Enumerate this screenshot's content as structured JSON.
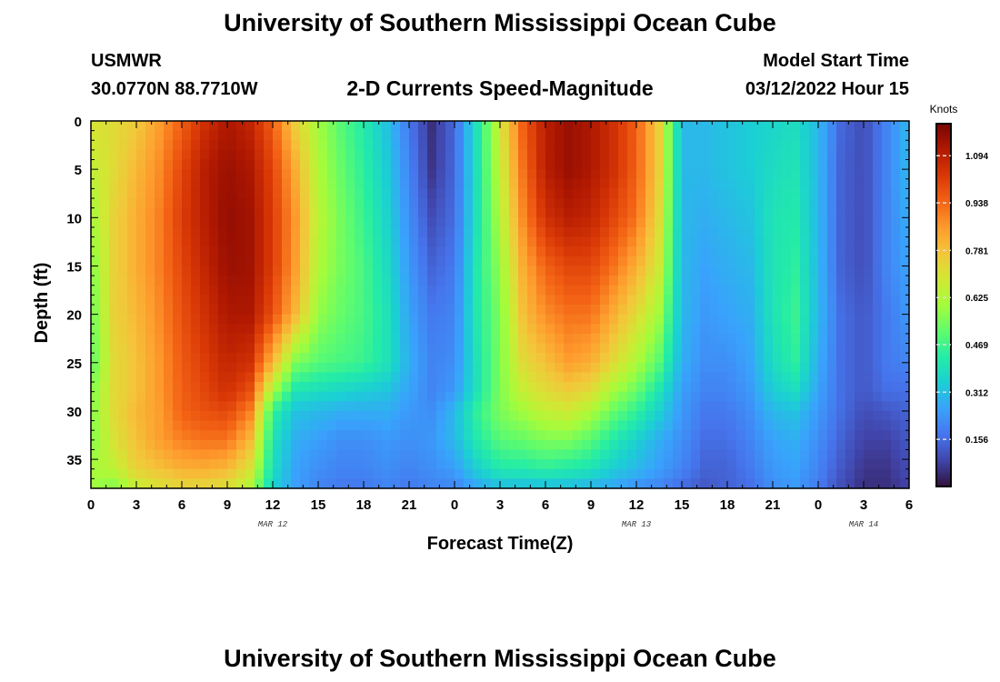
{
  "page": {
    "title": "University of Southern Mississippi Ocean Cube",
    "title_bottom": "University of Southern Mississippi Ocean Cube",
    "station": "USMWR",
    "coordinates": "30.0770N  88.7710W",
    "subtitle": "2-D Currents Speed-Magnitude",
    "model_start_label": "Model Start Time",
    "model_start_value": "03/12/2022 Hour 15"
  },
  "colors": {
    "colormap": [
      "#30123b",
      "#4145ab",
      "#4675ed",
      "#39a2fc",
      "#1bcfd4",
      "#24eca6",
      "#61fc6c",
      "#a4fc3b",
      "#d1e834",
      "#f3c63a",
      "#fe9b2d",
      "#f36315",
      "#d93806",
      "#b11901",
      "#7a0403"
    ]
  },
  "chart_data": {
    "type": "heatmap",
    "xlabel": "Forecast Time(Z)",
    "ylabel": "Depth (ft)",
    "x_ticks": [
      "0",
      "3",
      "6",
      "9",
      "12",
      "15",
      "18",
      "21",
      "0",
      "3",
      "6",
      "9",
      "12",
      "15",
      "18",
      "21",
      "0",
      "3",
      "6"
    ],
    "x_range_hours": [
      0,
      54
    ],
    "date_labels": [
      {
        "label": "MAR 12",
        "hour": 12
      },
      {
        "label": "MAR 13",
        "hour": 36
      },
      {
        "label": "MAR 14",
        "hour": 51
      }
    ],
    "y_ticks": [
      0,
      5,
      10,
      15,
      20,
      25,
      30,
      35
    ],
    "y_range": [
      0,
      38
    ],
    "y_inverted": true,
    "colorbar": {
      "title": "Knots",
      "ticks": [
        "1.094",
        "0.938",
        "0.781",
        "0.625",
        "0.469",
        "0.312",
        "0.156"
      ],
      "tick_values": [
        1.094,
        0.938,
        0.781,
        0.625,
        0.469,
        0.312,
        0.156
      ],
      "range": [
        0,
        1.2
      ]
    },
    "depths_ft": [
      0,
      5,
      10,
      15,
      20,
      25,
      28,
      30,
      33,
      36,
      38
    ],
    "hours": [
      0,
      1.5,
      3,
      4.5,
      6,
      7.5,
      9,
      10.5,
      12,
      13.5,
      15,
      16.5,
      18,
      19.5,
      21,
      22.5,
      24,
      25.5,
      27,
      28.5,
      30,
      31.5,
      33,
      34.5,
      36,
      37.5,
      39,
      40.5,
      42,
      43.5,
      45,
      46.5,
      48,
      49.5,
      51,
      52.5,
      54
    ],
    "speed_knots": [
      [
        0.7,
        0.65,
        0.6,
        0.55,
        0.52,
        0.5,
        0.55,
        0.55,
        0.55,
        0.6,
        0.6
      ],
      [
        0.72,
        0.72,
        0.74,
        0.74,
        0.74,
        0.72,
        0.72,
        0.72,
        0.7,
        0.65,
        0.55
      ],
      [
        0.76,
        0.8,
        0.82,
        0.82,
        0.8,
        0.78,
        0.78,
        0.8,
        0.78,
        0.75,
        0.65
      ],
      [
        0.85,
        0.88,
        0.9,
        0.9,
        0.88,
        0.86,
        0.86,
        0.85,
        0.85,
        0.78,
        0.7
      ],
      [
        0.95,
        1.0,
        1.02,
        1.0,
        0.98,
        0.96,
        0.95,
        0.95,
        0.9,
        0.82,
        0.72
      ],
      [
        1.05,
        1.1,
        1.1,
        1.08,
        1.05,
        1.02,
        1.0,
        0.98,
        0.92,
        0.82,
        0.72
      ],
      [
        1.12,
        1.15,
        1.16,
        1.15,
        1.12,
        1.08,
        1.05,
        1.0,
        0.92,
        0.8,
        0.7
      ],
      [
        1.08,
        1.12,
        1.14,
        1.14,
        1.12,
        1.05,
        0.98,
        0.9,
        0.8,
        0.7,
        0.62
      ],
      [
        0.95,
        1.0,
        1.02,
        1.02,
        0.98,
        0.8,
        0.6,
        0.45,
        0.4,
        0.38,
        0.35
      ],
      [
        0.75,
        0.82,
        0.86,
        0.85,
        0.8,
        0.55,
        0.4,
        0.32,
        0.28,
        0.26,
        0.25
      ],
      [
        0.6,
        0.62,
        0.64,
        0.62,
        0.58,
        0.5,
        0.38,
        0.3,
        0.25,
        0.22,
        0.2
      ],
      [
        0.5,
        0.52,
        0.54,
        0.54,
        0.52,
        0.48,
        0.36,
        0.28,
        0.22,
        0.2,
        0.18
      ],
      [
        0.42,
        0.44,
        0.46,
        0.48,
        0.48,
        0.46,
        0.34,
        0.28,
        0.22,
        0.2,
        0.18
      ],
      [
        0.32,
        0.34,
        0.36,
        0.38,
        0.4,
        0.4,
        0.32,
        0.28,
        0.24,
        0.22,
        0.2
      ],
      [
        0.18,
        0.2,
        0.22,
        0.24,
        0.26,
        0.28,
        0.26,
        0.24,
        0.22,
        0.2,
        0.18
      ],
      [
        0.05,
        0.06,
        0.1,
        0.14,
        0.18,
        0.2,
        0.2,
        0.22,
        0.24,
        0.22,
        0.2
      ],
      [
        0.15,
        0.15,
        0.16,
        0.18,
        0.2,
        0.22,
        0.24,
        0.3,
        0.3,
        0.25,
        0.2
      ],
      [
        0.4,
        0.4,
        0.4,
        0.42,
        0.42,
        0.4,
        0.4,
        0.45,
        0.42,
        0.35,
        0.26
      ],
      [
        0.68,
        0.65,
        0.62,
        0.58,
        0.55,
        0.55,
        0.55,
        0.55,
        0.5,
        0.42,
        0.3
      ],
      [
        0.95,
        0.92,
        0.88,
        0.82,
        0.78,
        0.72,
        0.66,
        0.6,
        0.52,
        0.42,
        0.3
      ],
      [
        1.1,
        1.1,
        1.05,
        0.95,
        0.88,
        0.78,
        0.72,
        0.66,
        0.55,
        0.44,
        0.3
      ],
      [
        1.15,
        1.15,
        1.1,
        1.0,
        0.92,
        0.85,
        0.75,
        0.68,
        0.55,
        0.42,
        0.3
      ],
      [
        1.12,
        1.12,
        1.08,
        1.0,
        0.92,
        0.82,
        0.72,
        0.62,
        0.5,
        0.4,
        0.28
      ],
      [
        1.05,
        1.05,
        1.0,
        0.92,
        0.82,
        0.72,
        0.6,
        0.52,
        0.42,
        0.34,
        0.26
      ],
      [
        0.95,
        0.95,
        0.92,
        0.82,
        0.72,
        0.62,
        0.52,
        0.45,
        0.35,
        0.3,
        0.22
      ],
      [
        0.75,
        0.75,
        0.72,
        0.68,
        0.6,
        0.5,
        0.4,
        0.35,
        0.28,
        0.25,
        0.2
      ],
      [
        0.3,
        0.3,
        0.3,
        0.3,
        0.3,
        0.28,
        0.25,
        0.24,
        0.22,
        0.2,
        0.15
      ],
      [
        0.3,
        0.3,
        0.28,
        0.26,
        0.24,
        0.22,
        0.2,
        0.18,
        0.16,
        0.14,
        0.12
      ],
      [
        0.32,
        0.32,
        0.3,
        0.28,
        0.26,
        0.22,
        0.2,
        0.18,
        0.16,
        0.14,
        0.14
      ],
      [
        0.34,
        0.34,
        0.32,
        0.3,
        0.28,
        0.26,
        0.24,
        0.22,
        0.2,
        0.18,
        0.16
      ],
      [
        0.36,
        0.38,
        0.4,
        0.4,
        0.4,
        0.38,
        0.34,
        0.3,
        0.26,
        0.24,
        0.22
      ],
      [
        0.38,
        0.4,
        0.42,
        0.44,
        0.46,
        0.44,
        0.38,
        0.32,
        0.28,
        0.26,
        0.24
      ],
      [
        0.3,
        0.3,
        0.3,
        0.3,
        0.3,
        0.28,
        0.26,
        0.24,
        0.22,
        0.2,
        0.18
      ],
      [
        0.15,
        0.14,
        0.14,
        0.14,
        0.16,
        0.16,
        0.16,
        0.16,
        0.14,
        0.12,
        0.1
      ],
      [
        0.1,
        0.1,
        0.1,
        0.1,
        0.12,
        0.12,
        0.12,
        0.1,
        0.08,
        0.06,
        0.05
      ],
      [
        0.2,
        0.2,
        0.2,
        0.2,
        0.18,
        0.18,
        0.16,
        0.12,
        0.08,
        0.06,
        0.05
      ],
      [
        0.3,
        0.3,
        0.28,
        0.26,
        0.24,
        0.2,
        0.16,
        0.14,
        0.12,
        0.1,
        0.08
      ]
    ]
  }
}
